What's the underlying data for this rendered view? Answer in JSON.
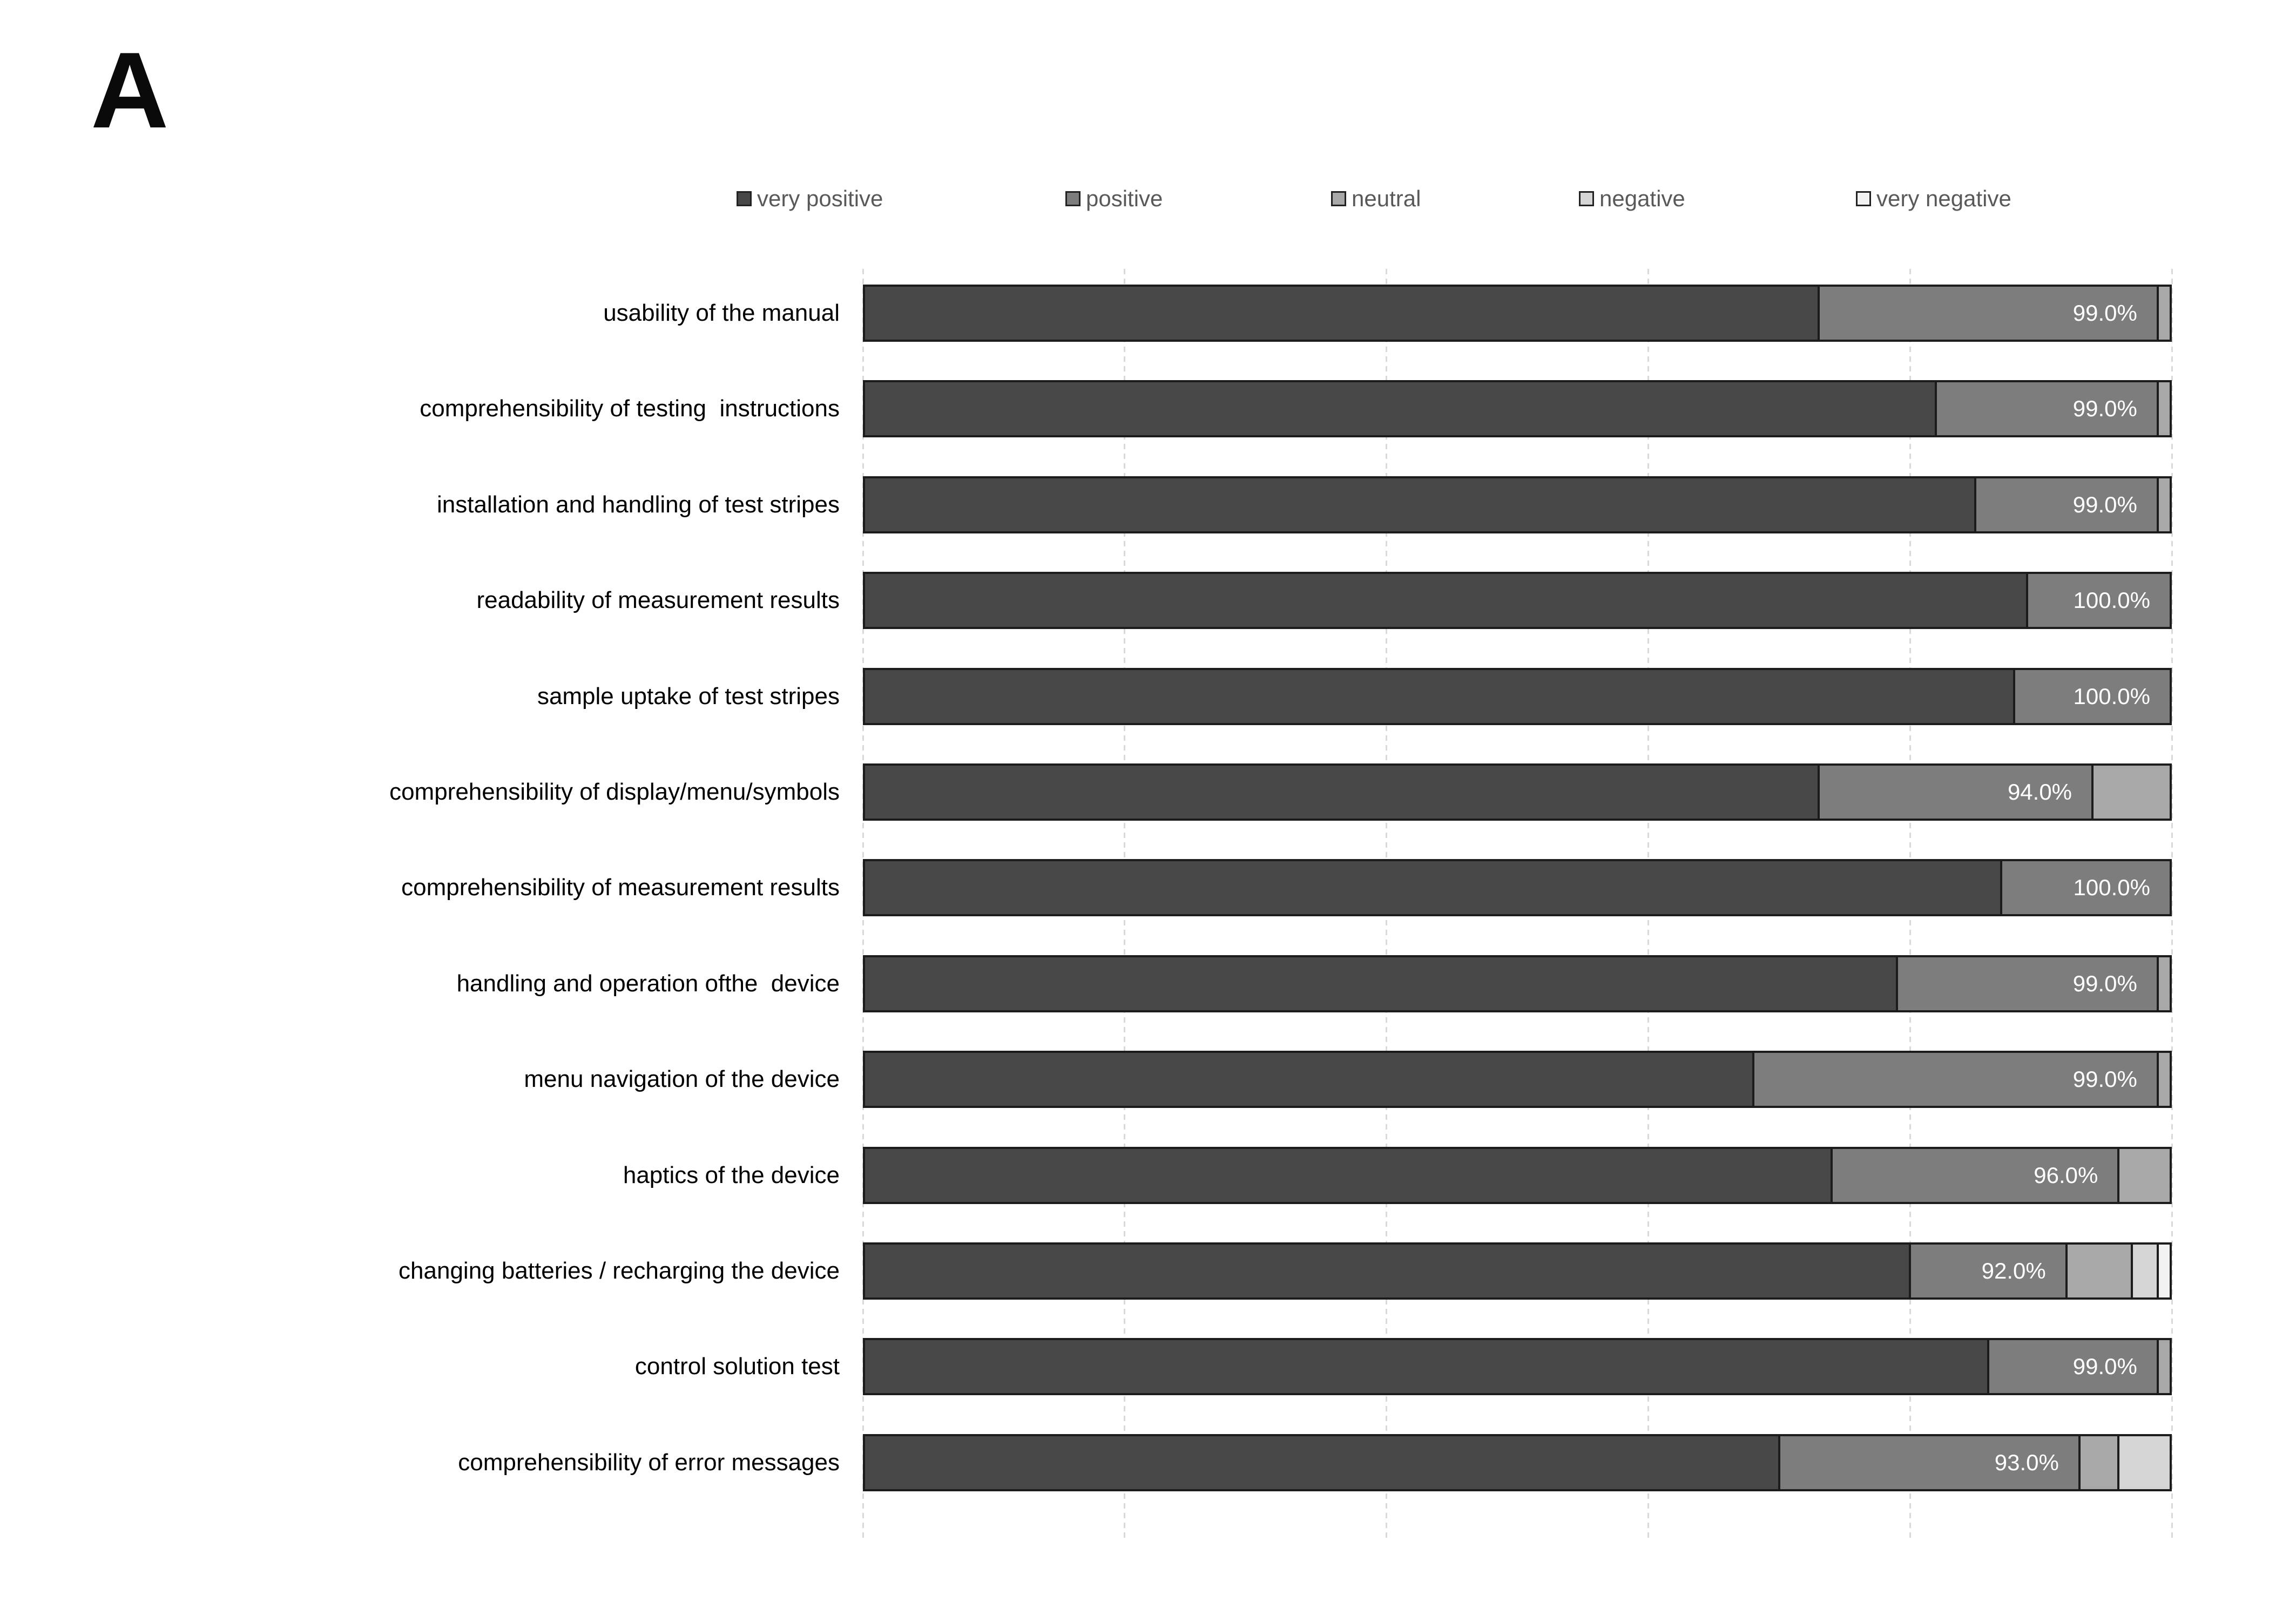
{
  "panel_label": "A",
  "colors": {
    "very_positive": "#484848",
    "positive": "#7d7d7d",
    "neutral": "#a8a8a8",
    "negative": "#d5d5d5",
    "very_negative": "#f2f2f2",
    "bar_border": "#1c1c1c",
    "gridline": "#d9d9d9",
    "value_label_text": "#ffffff",
    "category_label_text": "#000000",
    "legend_text": "#595959"
  },
  "chart_data": {
    "type": "bar",
    "orientation": "horizontal",
    "stacked": true,
    "stacked_total_pct": 100,
    "xlim": [
      0,
      100
    ],
    "gridline_interval_pct": 20,
    "grid": true,
    "legend_position": "top",
    "title": "",
    "xlabel": "",
    "ylabel": "",
    "categories": [
      "usability of the manual",
      "comprehensibility of testing  instructions",
      "installation and handling of test stripes",
      "readability of measurement results",
      "sample uptake of test stripes",
      "comprehensibility of display/menu/symbols",
      "comprehensibility of measurement results",
      "handling and operation ofthe  device",
      "menu navigation of the device",
      "haptics of the device",
      "changing batteries / recharging the device",
      "control solution test",
      "comprehensibility of error messages"
    ],
    "series": [
      {
        "name": "very positive",
        "values": [
          73,
          82,
          85,
          89,
          88,
          73,
          87,
          79,
          68,
          74,
          80,
          86,
          70
        ]
      },
      {
        "name": "positive",
        "values": [
          26,
          17,
          14,
          11,
          12,
          21,
          13,
          20,
          31,
          22,
          12,
          13,
          23
        ]
      },
      {
        "name": "neutral",
        "values": [
          1,
          1,
          1,
          0,
          0,
          6,
          0,
          1,
          1,
          4,
          5,
          1,
          3
        ]
      },
      {
        "name": "negative",
        "values": [
          0,
          0,
          0,
          0,
          0,
          0,
          0,
          0,
          0,
          0,
          2,
          0,
          4
        ]
      },
      {
        "name": "very negative",
        "values": [
          0,
          0,
          0,
          0,
          0,
          0,
          0,
          0,
          0,
          0,
          1,
          0,
          0
        ]
      }
    ],
    "data_labels": [
      "99.0%",
      "99.0%",
      "99.0%",
      "100.0%",
      "100.0%",
      "94.0%",
      "100.0%",
      "99.0%",
      "99.0%",
      "96.0%",
      "92.0%",
      "99.0%",
      "93.0%"
    ],
    "data_label_series": "positive"
  },
  "layout_note_values_are_percent_of_row_total": true
}
